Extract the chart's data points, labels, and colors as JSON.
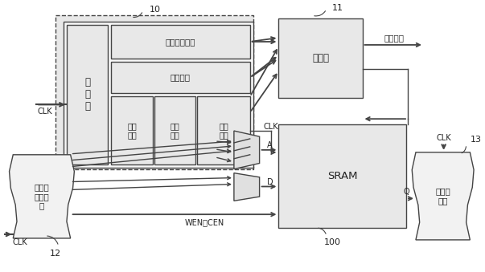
{
  "bg_color": "#ffffff",
  "lc": "#444444",
  "fill_light": "#e8e8e8",
  "fill_white": "#f8f8f8",
  "labels": {
    "state_machine": "状\n态\n机",
    "graph_compare": "图形向量比较",
    "ref_data": "参考数据",
    "ctrl_sig": "控制\n信号",
    "data_sig": "数据\n信号",
    "addr_sig": "地址\n信号",
    "comparator": "比较器",
    "sram": "SRAM",
    "logic_gen": "逻辑计\n算发生\n器",
    "logic_combine": "逻辑组\n合器",
    "result_out": "结果输出",
    "clk": "CLK",
    "A": "A",
    "D": "D",
    "WEN_CEN": "WEN，CEN",
    "Q": "Q",
    "num_10": "10",
    "num_11": "11",
    "num_12": "12",
    "num_13": "13",
    "num_100": "100"
  }
}
